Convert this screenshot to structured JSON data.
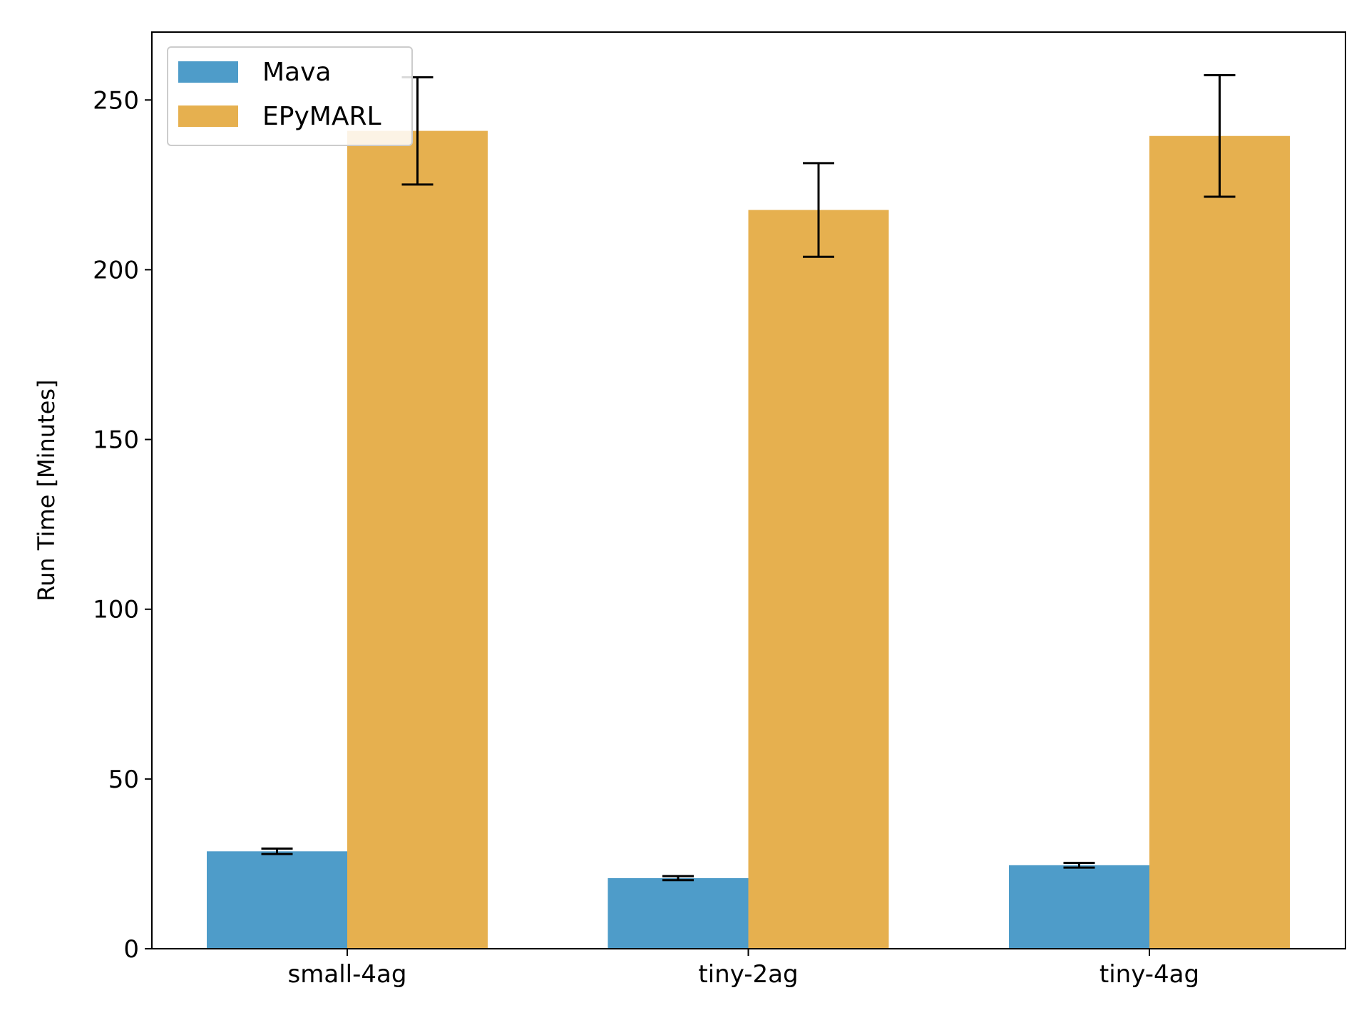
{
  "chart_data": {
    "type": "bar",
    "title": "",
    "xlabel": "",
    "ylabel": "Run Time [Minutes]",
    "categories": [
      "small-4ag",
      "tiny-2ag",
      "tiny-4ag"
    ],
    "ylim": [
      0,
      270
    ],
    "yticks": [
      0,
      50,
      100,
      150,
      200,
      250
    ],
    "grid": false,
    "legend_position": "top-left",
    "series": [
      {
        "name": "Mava",
        "color": "#4e9cc9",
        "values": [
          28.7,
          20.8,
          24.6
        ],
        "errors": [
          0.8,
          0.6,
          0.7
        ]
      },
      {
        "name": "EPyMARL",
        "color": "#e6b04f",
        "values": [
          240.9,
          217.6,
          239.4
        ],
        "errors": [
          15.8,
          13.8,
          17.9
        ]
      }
    ]
  }
}
